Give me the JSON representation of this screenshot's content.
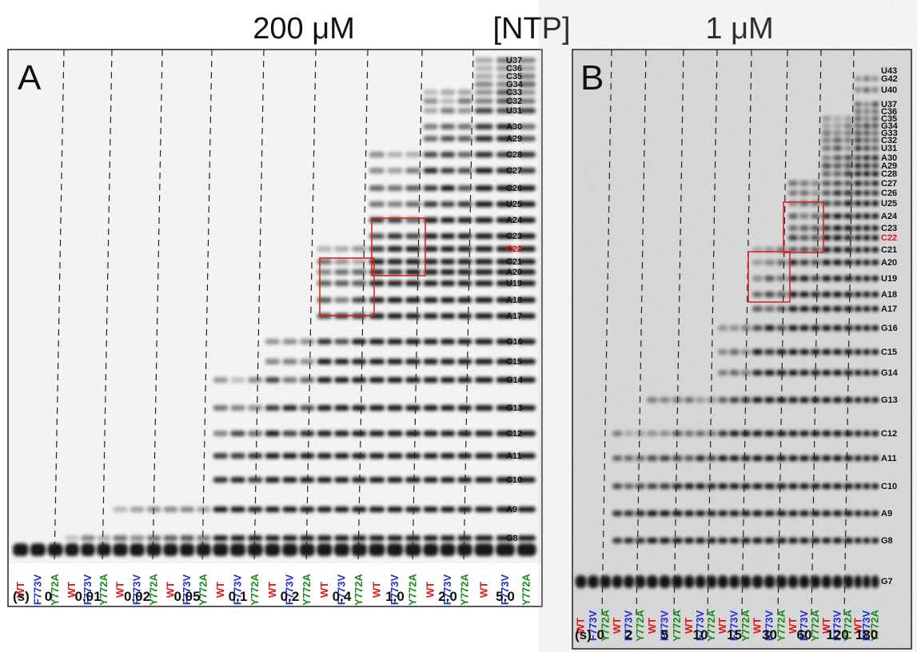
{
  "header": {
    "left_concentration": "200 μM",
    "center_label": "[NTP]",
    "right_concentration": "1 μM"
  },
  "panel_a": {
    "letter": "A",
    "band_labels": [
      "U37",
      "C36",
      "C35",
      "G34",
      "C33",
      "C32",
      "U31",
      "A30",
      "A29",
      "C28",
      "C27",
      "C26",
      "U25",
      "A24",
      "C23",
      "C22",
      "C21",
      "A20",
      "U19",
      "A18",
      "A17",
      "G16",
      "C15",
      "G14",
      "G13",
      "C12",
      "A11",
      "C10",
      "A9",
      "G8"
    ],
    "lane_labels": [
      "WT",
      "F773V",
      "Y772A"
    ],
    "time_unit": "(s)",
    "times": [
      "0",
      "0.01",
      "0.02",
      "0.05",
      "0.1",
      "0.2",
      "0.4",
      "1.0",
      "2.0",
      "5.0"
    ]
  },
  "panel_b": {
    "letter": "B",
    "band_labels": [
      "U43",
      "G42",
      "U40",
      "U37",
      "C36",
      "C35",
      "G34",
      "G33",
      "C32",
      "U31",
      "A30",
      "A29",
      "C28",
      "C27",
      "C26",
      "U25",
      "A24",
      "C23",
      "C22",
      "C21",
      "A20",
      "U19",
      "A18",
      "A17",
      "G16",
      "C15",
      "G14",
      "G13",
      "C12",
      "A11",
      "C10",
      "A9",
      "G8",
      "G7"
    ],
    "lane_labels": [
      "WT",
      "F773V",
      "Y772A"
    ],
    "time_unit": "(s)",
    "times": [
      "0",
      "2",
      "5",
      "10",
      "15",
      "30",
      "60",
      "120",
      "180"
    ]
  }
}
